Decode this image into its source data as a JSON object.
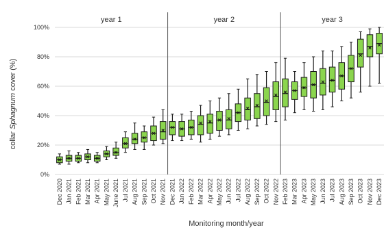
{
  "chart_data": {
    "type": "box",
    "xlabel": "Monitoring month/year",
    "ylabel_parts": [
      "collar ",
      "Sphagnum",
      " cover (%)"
    ],
    "ylim": [
      0,
      100
    ],
    "y_ticks": [
      "0%",
      "20%",
      "40%",
      "60%",
      "80%",
      "100%"
    ],
    "grid": true,
    "periods": [
      {
        "label": "year 1",
        "from": "Dec 2020",
        "to": "Nov 2021"
      },
      {
        "label": "year 2",
        "from": "Dec 2021",
        "to": "Nov 2022"
      },
      {
        "label": "year 3",
        "from": "Feb 2023",
        "to": "Dec 2023"
      }
    ],
    "categories": [
      "Dec 2020",
      "Jan 2021",
      "Feb 2021",
      "Mar 2021",
      "Apr 2021",
      "May 2021",
      "June 2021",
      "Jul 2021",
      "Aug 2021",
      "Sep 2021",
      "Oct 2021",
      "Nov 2021",
      "Dec 2021",
      "Jan 2022",
      "Feb 2022",
      "Mar 2022",
      "Apr 2022",
      "May 2022",
      "Jun 2022",
      "Jul 2022",
      "Aug 2022",
      "Sep 2022",
      "Oct 2022",
      "Nov 2022",
      "Feb 2023",
      "Mar 2023",
      "Apr 2023",
      "May 2023",
      "Jun 2023",
      "Jul 2023",
      "Aug 2023",
      "Sep 2023",
      "Oct 2023",
      "Nov 2023",
      "Dec 2023"
    ],
    "boxes": [
      {
        "min": 7,
        "q1": 8,
        "median": 10,
        "q3": 12,
        "max": 14,
        "mean": 10
      },
      {
        "min": 7,
        "q1": 9,
        "median": 11,
        "q3": 13,
        "max": 16,
        "mean": 11
      },
      {
        "min": 8,
        "q1": 9,
        "median": 11,
        "q3": 13,
        "max": 15,
        "mean": 11
      },
      {
        "min": 8,
        "q1": 10,
        "median": 12,
        "q3": 14,
        "max": 17,
        "mean": 12
      },
      {
        "min": 8,
        "q1": 9,
        "median": 11,
        "q3": 13,
        "max": 15,
        "mean": 11
      },
      {
        "min": 10,
        "q1": 12,
        "median": 14,
        "q3": 16,
        "max": 19,
        "mean": 14
      },
      {
        "min": 11,
        "q1": 13,
        "median": 15,
        "q3": 18,
        "max": 22,
        "mean": 15
      },
      {
        "min": 15,
        "q1": 18,
        "median": 21,
        "q3": 25,
        "max": 29,
        "mean": 21
      },
      {
        "min": 17,
        "q1": 21,
        "median": 24,
        "q3": 28,
        "max": 35,
        "mean": 24
      },
      {
        "min": 17,
        "q1": 22,
        "median": 25,
        "q3": 29,
        "max": 33,
        "mean": 25
      },
      {
        "min": 20,
        "q1": 23,
        "median": 28,
        "q3": 33,
        "max": 39,
        "mean": 28
      },
      {
        "min": 21,
        "q1": 24,
        "median": 29,
        "q3": 36,
        "max": 44,
        "mean": 30
      },
      {
        "min": 23,
        "q1": 27,
        "median": 32,
        "q3": 36,
        "max": 41,
        "mean": 32
      },
      {
        "min": 23,
        "q1": 26,
        "median": 31,
        "q3": 36,
        "max": 41,
        "mean": 31
      },
      {
        "min": 24,
        "q1": 27,
        "median": 32,
        "q3": 37,
        "max": 43,
        "mean": 32
      },
      {
        "min": 22,
        "q1": 27,
        "median": 34,
        "q3": 40,
        "max": 47,
        "mean": 35
      },
      {
        "min": 24,
        "q1": 28,
        "median": 35,
        "q3": 41,
        "max": 50,
        "mean": 36
      },
      {
        "min": 26,
        "q1": 30,
        "median": 37,
        "q3": 43,
        "max": 52,
        "mean": 37
      },
      {
        "min": 27,
        "q1": 31,
        "median": 37,
        "q3": 44,
        "max": 55,
        "mean": 38
      },
      {
        "min": 30,
        "q1": 36,
        "median": 42,
        "q3": 48,
        "max": 58,
        "mean": 42
      },
      {
        "min": 31,
        "q1": 37,
        "median": 44,
        "q3": 52,
        "max": 65,
        "mean": 45
      },
      {
        "min": 33,
        "q1": 38,
        "median": 46,
        "q3": 55,
        "max": 68,
        "mean": 47
      },
      {
        "min": 34,
        "q1": 40,
        "median": 49,
        "q3": 59,
        "max": 70,
        "mean": 50
      },
      {
        "min": 36,
        "q1": 44,
        "median": 53,
        "q3": 63,
        "max": 76,
        "mean": 54
      },
      {
        "min": 37,
        "q1": 46,
        "median": 55,
        "q3": 65,
        "max": 79,
        "mean": 56
      },
      {
        "min": 42,
        "q1": 51,
        "median": 57,
        "q3": 63,
        "max": 70,
        "mean": 57
      },
      {
        "min": 44,
        "q1": 53,
        "median": 59,
        "q3": 66,
        "max": 76,
        "mean": 59
      },
      {
        "min": 43,
        "q1": 52,
        "median": 61,
        "q3": 70,
        "max": 80,
        "mean": 61
      },
      {
        "min": 44,
        "q1": 54,
        "median": 62,
        "q3": 72,
        "max": 84,
        "mean": 63
      },
      {
        "min": 46,
        "q1": 56,
        "median": 64,
        "q3": 73,
        "max": 84,
        "mean": 64
      },
      {
        "min": 50,
        "q1": 58,
        "median": 67,
        "q3": 76,
        "max": 87,
        "mean": 67
      },
      {
        "min": 52,
        "q1": 63,
        "median": 72,
        "q3": 81,
        "max": 90,
        "mean": 72
      },
      {
        "min": 56,
        "q1": 73,
        "median": 82,
        "q3": 92,
        "max": 97,
        "mean": 81
      },
      {
        "min": 60,
        "q1": 80,
        "median": 87,
        "q3": 95,
        "max": 99,
        "mean": 86
      },
      {
        "min": 62,
        "q1": 82,
        "median": 89,
        "q3": 96,
        "max": 100,
        "mean": 88
      }
    ],
    "colors": {
      "box_fill": "#8bd54e",
      "box_stroke": "#1a1a1a",
      "whisker": "#1a1a1a",
      "grid": "#d9d9d9",
      "divider": "#555555"
    }
  }
}
